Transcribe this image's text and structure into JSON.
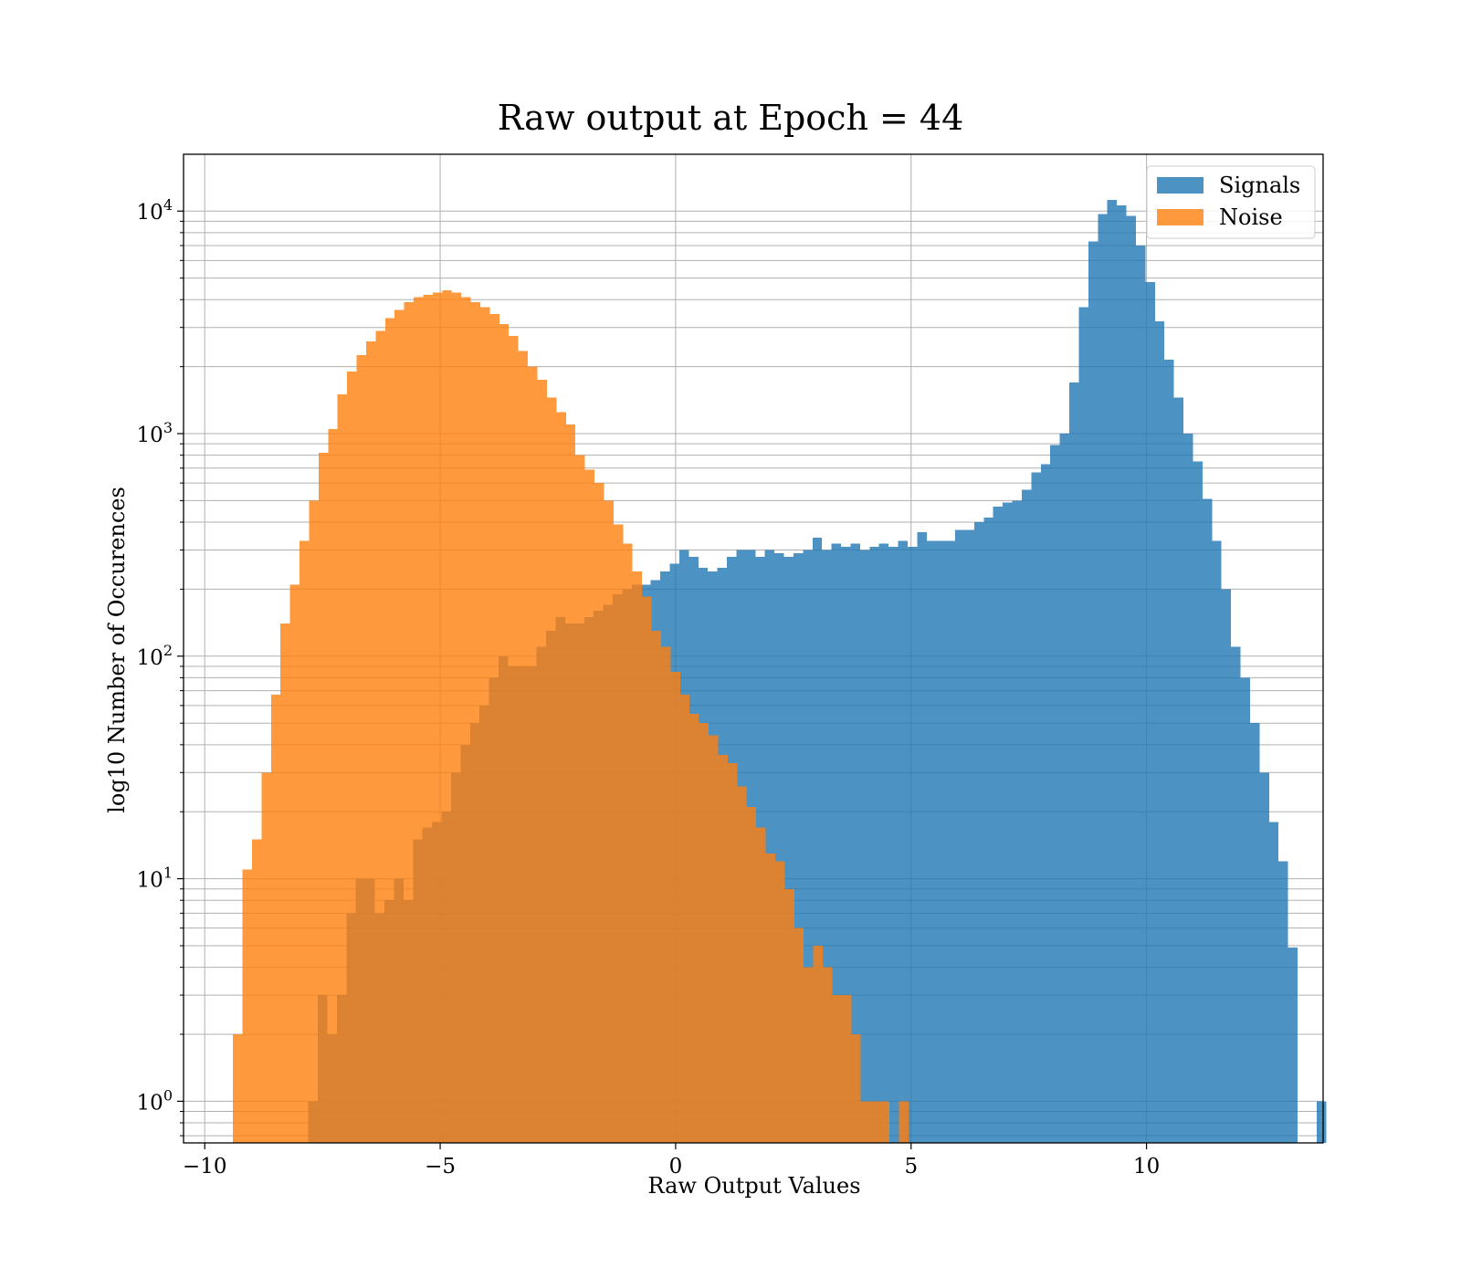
{
  "chart_data": {
    "type": "bar",
    "title": "Raw output at Epoch = 44",
    "xlabel": "Raw Output Values",
    "ylabel": "log10 Number of Occurences",
    "y_scale": "log",
    "xlim": [
      -10.45,
      13.75
    ],
    "ylim": [
      0.65,
      18000
    ],
    "x_ticks": [
      {
        "value": -10,
        "label": "−10"
      },
      {
        "value": -5,
        "label": "−5"
      },
      {
        "value": 0,
        "label": "0"
      },
      {
        "value": 5,
        "label": "5"
      },
      {
        "value": 10,
        "label": "10"
      }
    ],
    "y_ticks": [
      {
        "value": 1,
        "base": "10",
        "exp": "0"
      },
      {
        "value": 10,
        "base": "10",
        "exp": "1"
      },
      {
        "value": 100,
        "base": "10",
        "exp": "2"
      },
      {
        "value": 1000,
        "base": "10",
        "exp": "3"
      },
      {
        "value": 10000,
        "base": "10",
        "exp": "4"
      }
    ],
    "grid": true,
    "legend_position": "top-right",
    "series": [
      {
        "name": "Signals",
        "color": "#1f77b4",
        "opacity": 0.8,
        "bin_start": -7.8,
        "bin_width": 0.202,
        "values": [
          1,
          3,
          2,
          3,
          7,
          10,
          10,
          7,
          8,
          10,
          8,
          15,
          17,
          18,
          20,
          30,
          40,
          50,
          60,
          80,
          100,
          90,
          90,
          90,
          110,
          130,
          150,
          140,
          140,
          150,
          160,
          170,
          190,
          200,
          210,
          210,
          220,
          240,
          260,
          300,
          280,
          250,
          240,
          250,
          280,
          300,
          300,
          280,
          300,
          290,
          280,
          290,
          300,
          340,
          300,
          320,
          310,
          320,
          300,
          310,
          320,
          310,
          330,
          310,
          360,
          330,
          330,
          330,
          370,
          370,
          400,
          420,
          470,
          490,
          500,
          560,
          670,
          730,
          890,
          1000,
          1700,
          3700,
          7300,
          9700,
          11200,
          10600,
          9500,
          7000,
          4800,
          3200,
          2150,
          1450,
          1000,
          750,
          510,
          330,
          200,
          110,
          80,
          50,
          30,
          18,
          12,
          4.9,
          null,
          null,
          1
        ]
      },
      {
        "name": "Noise",
        "color": "#ff7f0e",
        "opacity": 0.8,
        "bin_start": -9.4,
        "bin_width": 0.202,
        "values": [
          2,
          11,
          15,
          30,
          67,
          140,
          210,
          330,
          500,
          820,
          1050,
          1500,
          1900,
          2250,
          2600,
          2900,
          3300,
          3600,
          3900,
          4100,
          4200,
          4300,
          4400,
          4300,
          4100,
          3900,
          3700,
          3450,
          3100,
          2750,
          2350,
          2000,
          1750,
          1450,
          1250,
          1100,
          800,
          690,
          600,
          500,
          390,
          320,
          240,
          185,
          130,
          110,
          85,
          67,
          55,
          50,
          44,
          36,
          33,
          26,
          21,
          17,
          13,
          12,
          9,
          6,
          4,
          5,
          4,
          3,
          3,
          2,
          1,
          1,
          1,
          null,
          1
        ]
      }
    ]
  }
}
